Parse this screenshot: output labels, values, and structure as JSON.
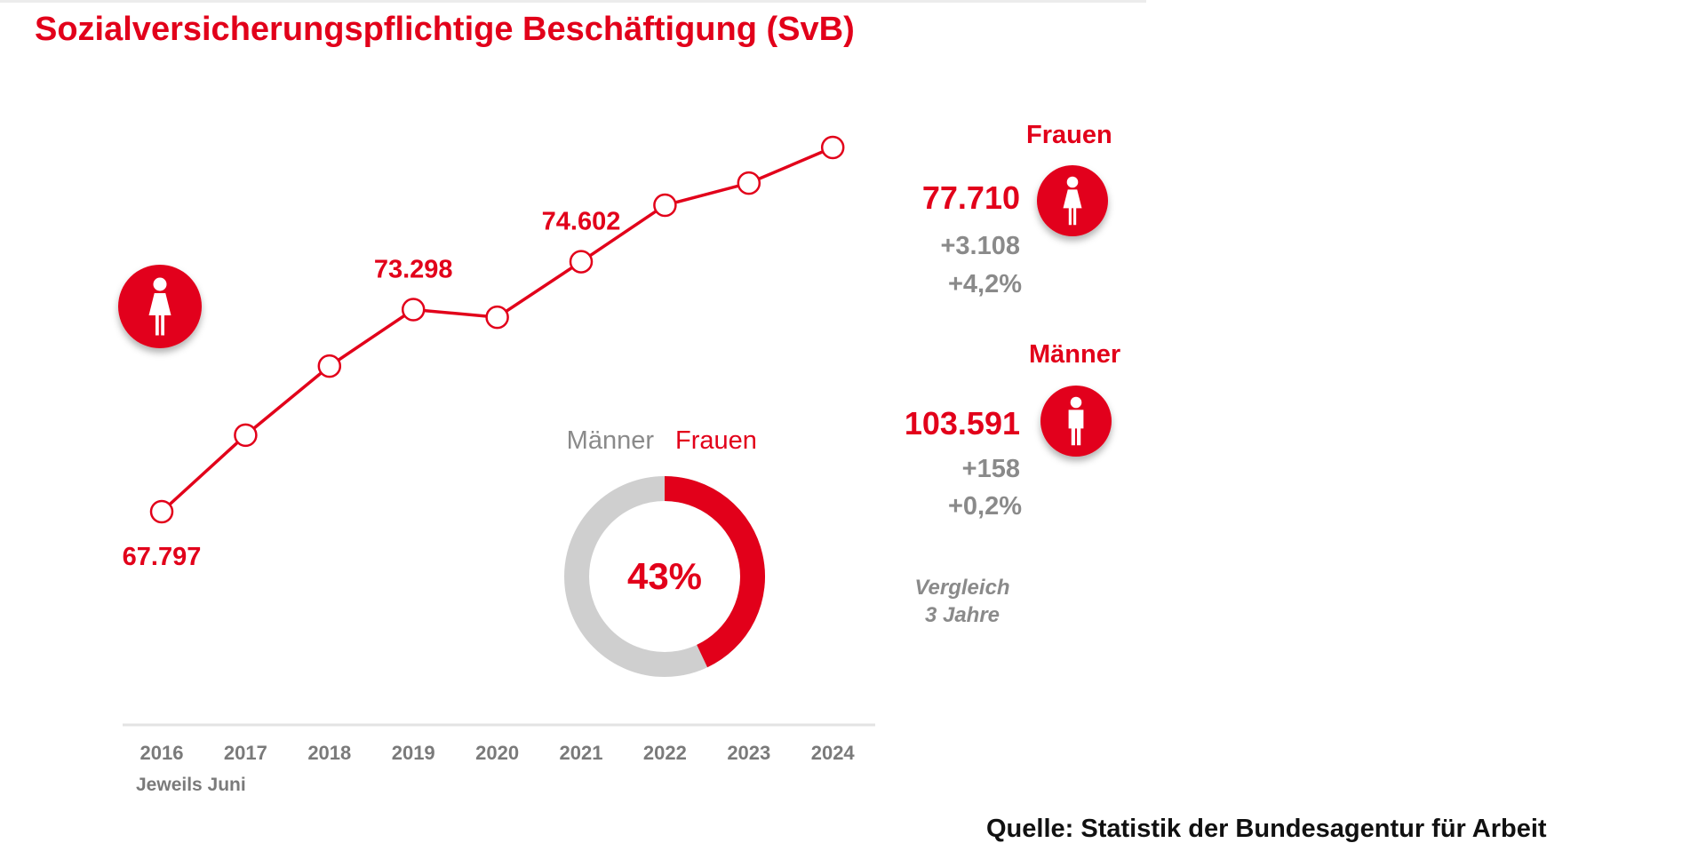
{
  "title": "Sozialversicherungspflichtige Beschäftigung (SvB)",
  "colors": {
    "accent": "#e2001a",
    "gray": "#c8c8c8",
    "text_gray": "#8a8a8a"
  },
  "chart_data": {
    "type": "line",
    "title": "Sozialversicherungspflichtige Beschäftigung (SvB)",
    "series_name": "Frauen",
    "categories": [
      "2016",
      "2017",
      "2018",
      "2019",
      "2020",
      "2021",
      "2022",
      "2023",
      "2024"
    ],
    "values": [
      67797,
      69880,
      71760,
      73298,
      73090,
      74602,
      76140,
      76740,
      77710
    ],
    "data_labels": {
      "0": "67.797",
      "3": "73.298",
      "5": "74.602"
    },
    "xlabel": "Jeweils Juni",
    "ylim": [
      66000,
      79000
    ],
    "grid": false,
    "donut": {
      "legend": [
        "Männer",
        "Frauen"
      ],
      "frauen_share": 43,
      "label": "43%"
    }
  },
  "frauen": {
    "label": "Frauen",
    "value": "77.710",
    "diff": "+3.108",
    "pct": "+4,2%"
  },
  "maenner": {
    "label": "Männer",
    "value": "103.591",
    "diff": "+158",
    "pct": "+0,2%"
  },
  "vergleich": {
    "line1": "Vergleich",
    "line2": "3 Jahre"
  },
  "source": "Quelle: Statistik der Bundesagentur für Arbeit"
}
